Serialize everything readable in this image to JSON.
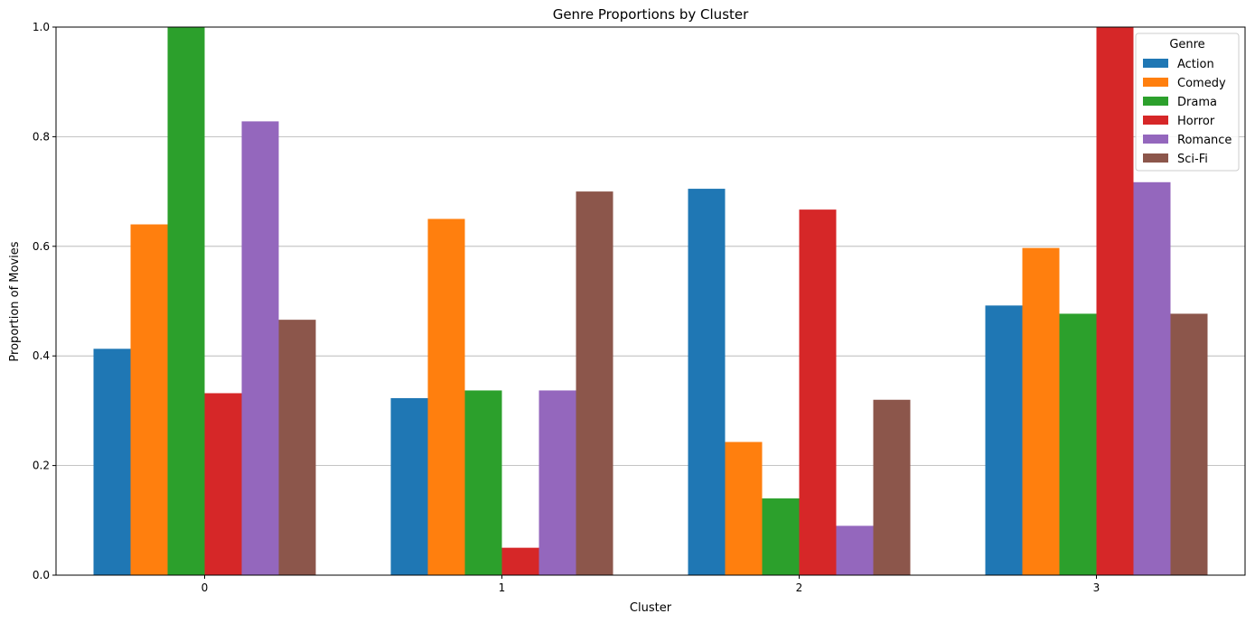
{
  "chart_data": {
    "type": "bar",
    "title": "Genre Proportions by Cluster",
    "xlabel": "Cluster",
    "ylabel": "Proportion of Movies",
    "categories": [
      "0",
      "1",
      "2",
      "3"
    ],
    "ylim": [
      0,
      1.0
    ],
    "yticks": [
      "0.0",
      "0.2",
      "0.4",
      "0.6",
      "0.8",
      "1.0"
    ],
    "grid": "y",
    "legend": {
      "title": "Genre",
      "placement": "top-right"
    },
    "series": [
      {
        "name": "Action",
        "color": "#1f77b4",
        "values": [
          0.413,
          0.323,
          0.705,
          0.492
        ]
      },
      {
        "name": "Comedy",
        "color": "#ff7f0e",
        "values": [
          0.64,
          0.65,
          0.243,
          0.597
        ]
      },
      {
        "name": "Drama",
        "color": "#2ca02c",
        "values": [
          1.0,
          0.337,
          0.14,
          0.477
        ]
      },
      {
        "name": "Horror",
        "color": "#d62728",
        "values": [
          0.332,
          0.05,
          0.667,
          1.0
        ]
      },
      {
        "name": "Romance",
        "color": "#9467bd",
        "values": [
          0.828,
          0.337,
          0.09,
          0.717
        ]
      },
      {
        "name": "Sci-Fi",
        "color": "#8c564b",
        "values": [
          0.466,
          0.7,
          0.32,
          0.477
        ]
      }
    ]
  }
}
